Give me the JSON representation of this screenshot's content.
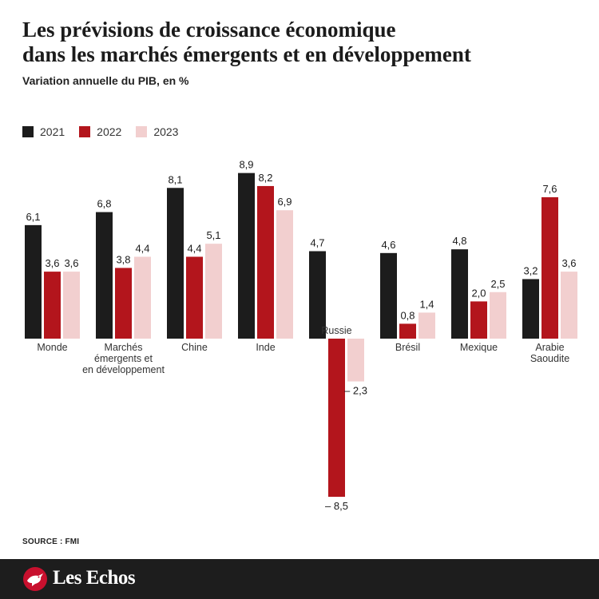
{
  "chart_data": {
    "type": "bar",
    "title_lines": [
      "Les prévisions de croissance économique",
      "dans les marchés émergents et en développement"
    ],
    "subtitle": "Variation annuelle du PIB, en %",
    "categories": [
      [
        "Monde"
      ],
      [
        "Marchés",
        "émergents et",
        "en développement"
      ],
      [
        "Chine"
      ],
      [
        "Inde"
      ],
      [
        "Russie"
      ],
      [
        "Brésil"
      ],
      [
        "Mexique"
      ],
      [
        "Arabie",
        "Saoudite"
      ]
    ],
    "series": [
      {
        "name": "2021",
        "color": "#1c1c1c",
        "values": [
          6.1,
          6.8,
          8.1,
          8.9,
          4.7,
          4.6,
          4.8,
          3.2
        ],
        "labels": [
          "6,1",
          "6,8",
          "8,1",
          "8,9",
          "4,7",
          "4,6",
          "4,8",
          "3,2"
        ]
      },
      {
        "name": "2022",
        "color": "#b3151c",
        "values": [
          3.6,
          3.8,
          4.4,
          8.2,
          -8.5,
          0.8,
          2.0,
          7.6
        ],
        "labels": [
          "3,6",
          "3,8",
          "4,4",
          "8,2",
          "– 8,5",
          "0,8",
          "2,0",
          "7,6"
        ]
      },
      {
        "name": "2023",
        "color": "#f2cfcf",
        "values": [
          3.6,
          4.4,
          5.1,
          6.9,
          -2.3,
          1.4,
          2.5,
          3.6
        ],
        "labels": [
          "3,6",
          "4,4",
          "5,1",
          "6,9",
          "– 2,3",
          "1,4",
          "2,5",
          "3,6"
        ]
      }
    ],
    "legend_position": "top-left",
    "grid": false
  },
  "source": "SOURCE : FMI",
  "brand": {
    "name": "Les Echos",
    "logo_icon": "bird-logo-icon",
    "accent": "#c8102e"
  }
}
